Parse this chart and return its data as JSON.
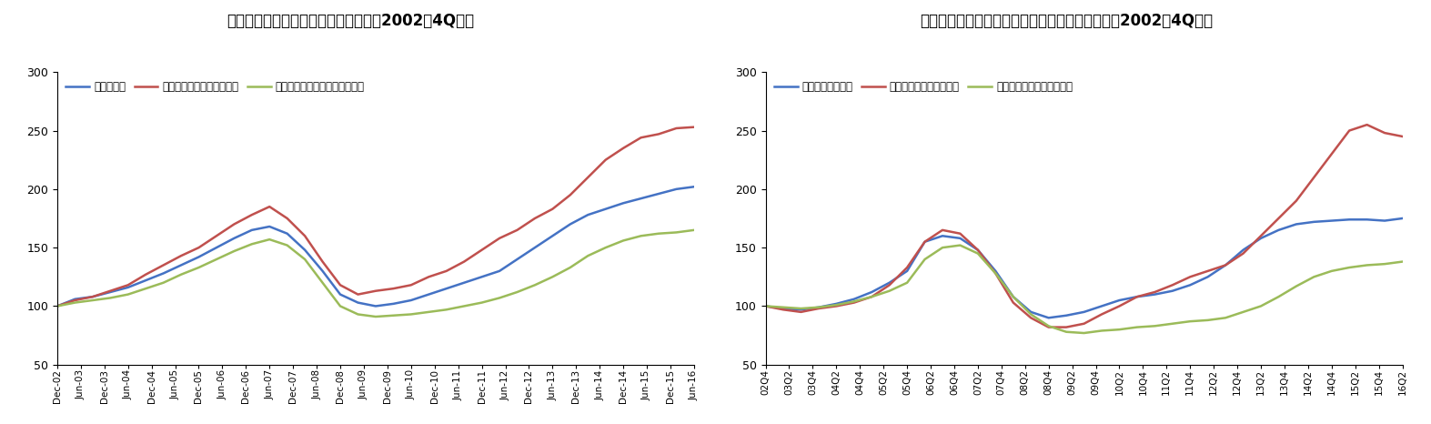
{
  "title1": "図表３　米国商業用価格指数の推移（2002年4Q～）",
  "title2": "図表４　英国・ロンドン商業用価格指数の推移（2002年4Q～）",
  "chart1": {
    "legend": [
      "全米全用途",
      "主要マーケット（全用途）",
      "主要マーケット以外（全用途）"
    ],
    "colors": [
      "#4472C4",
      "#C0504D",
      "#9BBB59"
    ],
    "ylim": [
      50,
      300
    ],
    "yticks": [
      50,
      100,
      150,
      200,
      250,
      300
    ],
    "xticks": [
      "Dec-02",
      "Jun-03",
      "Dec-03",
      "Jun-04",
      "Dec-04",
      "Jun-05",
      "Dec-05",
      "Jun-06",
      "Dec-06",
      "Jun-07",
      "Dec-07",
      "Jun-08",
      "Dec-08",
      "Jun-09",
      "Dec-09",
      "Jun-10",
      "Dec-10",
      "Jun-11",
      "Dec-11",
      "Jun-12",
      "Dec-12",
      "Jun-13",
      "Dec-13",
      "Jun-14",
      "Dec-14",
      "Jun-15",
      "Dec-15",
      "Jun-16"
    ],
    "series": {
      "blue": [
        100,
        106,
        108,
        112,
        116,
        122,
        128,
        135,
        142,
        150,
        158,
        165,
        168,
        162,
        148,
        130,
        110,
        103,
        100,
        102,
        105,
        110,
        115,
        120,
        125,
        130,
        140,
        150,
        160,
        170,
        178,
        183,
        188,
        192,
        196,
        200,
        202
      ],
      "red": [
        100,
        105,
        108,
        113,
        118,
        127,
        135,
        143,
        150,
        160,
        170,
        178,
        185,
        175,
        160,
        138,
        118,
        110,
        113,
        115,
        118,
        125,
        130,
        138,
        148,
        158,
        165,
        175,
        183,
        195,
        210,
        225,
        235,
        244,
        247,
        252,
        253
      ],
      "green": [
        100,
        103,
        105,
        107,
        110,
        115,
        120,
        127,
        133,
        140,
        147,
        153,
        157,
        152,
        140,
        120,
        100,
        93,
        91,
        92,
        93,
        95,
        97,
        100,
        103,
        107,
        112,
        118,
        125,
        133,
        143,
        150,
        156,
        160,
        162,
        163,
        165
      ]
    }
  },
  "chart2": {
    "legend": [
      "英国商業用不動産",
      "ロンドン中心部オフィス",
      "ロンドン除く英国オフィス"
    ],
    "colors": [
      "#4472C4",
      "#C0504D",
      "#9BBB59"
    ],
    "ylim": [
      50,
      300
    ],
    "yticks": [
      50,
      100,
      150,
      200,
      250,
      300
    ],
    "xticks": [
      "02Q4",
      "03Q2",
      "03Q4",
      "04Q2",
      "04Q4",
      "05Q2",
      "05Q4",
      "06Q2",
      "06Q4",
      "07Q2",
      "07Q4",
      "08Q2",
      "08Q4",
      "09Q2",
      "09Q4",
      "10Q2",
      "10Q4",
      "11Q2",
      "11Q4",
      "12Q2",
      "12Q4",
      "13Q2",
      "13Q4",
      "14Q2",
      "14Q4",
      "15Q2",
      "15Q4",
      "16Q2"
    ],
    "series": {
      "blue": [
        100,
        98,
        97,
        99,
        102,
        106,
        112,
        120,
        130,
        155,
        160,
        158,
        148,
        130,
        108,
        95,
        90,
        92,
        95,
        100,
        105,
        108,
        110,
        113,
        118,
        125,
        135,
        148,
        158,
        165,
        170,
        172,
        173,
        174,
        174,
        173,
        175
      ],
      "red": [
        100,
        97,
        95,
        98,
        100,
        103,
        108,
        118,
        133,
        155,
        165,
        162,
        148,
        128,
        103,
        90,
        82,
        82,
        85,
        93,
        100,
        108,
        112,
        118,
        125,
        130,
        135,
        145,
        160,
        175,
        190,
        210,
        230,
        250,
        255,
        248,
        245
      ],
      "green": [
        100,
        99,
        98,
        99,
        101,
        104,
        108,
        113,
        120,
        140,
        150,
        152,
        145,
        128,
        108,
        93,
        83,
        78,
        77,
        79,
        80,
        82,
        83,
        85,
        87,
        88,
        90,
        95,
        100,
        108,
        117,
        125,
        130,
        133,
        135,
        136,
        138
      ]
    }
  },
  "bg_color": "#FFFFFF"
}
